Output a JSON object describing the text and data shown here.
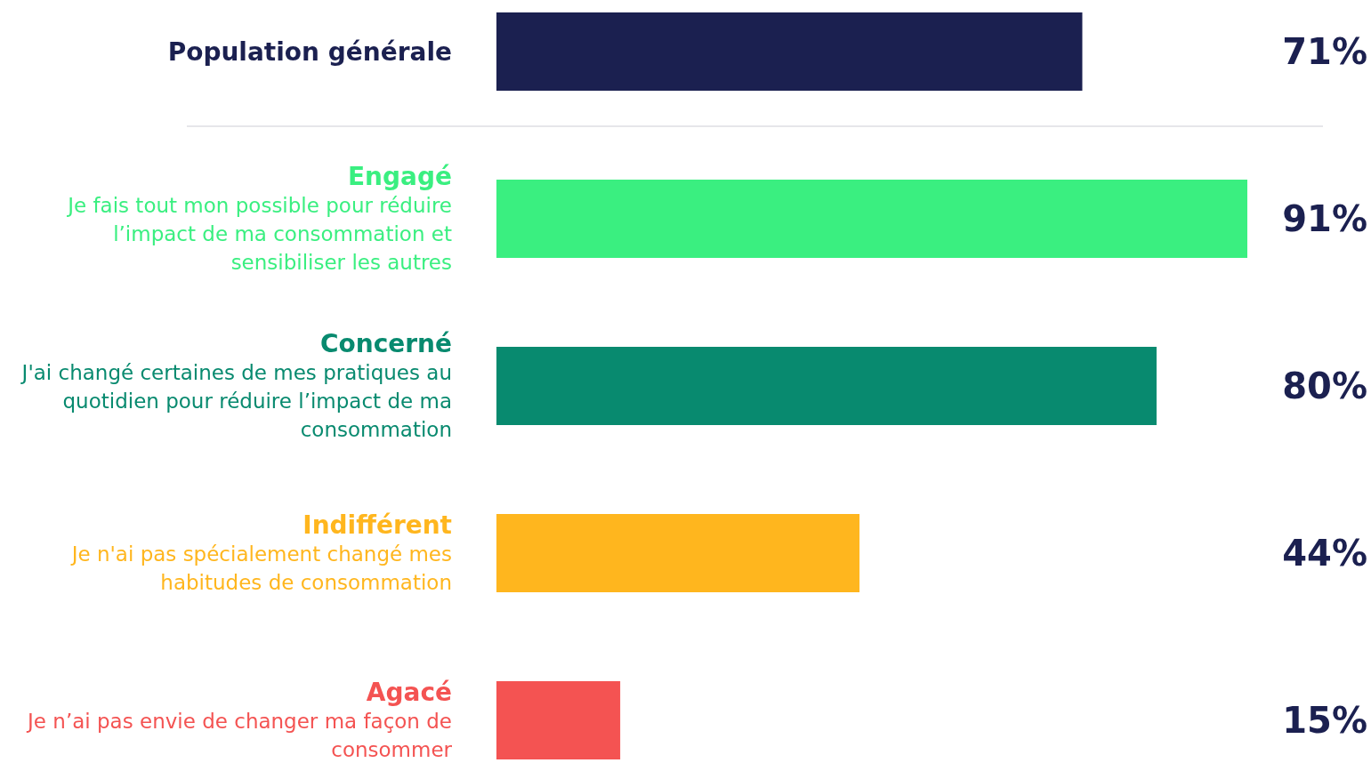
{
  "chart_data": {
    "type": "bar",
    "orientation": "horizontal",
    "categories": [
      "Population générale",
      "Engagé\nJe fais tout mon possible pour réduire\nl’impact de ma consommation et\nsensibiliser les autres",
      "Concerné\nJ'ai changé certaines de mes pratiques au\nquotidien pour réduire l’impact de ma\nconsommation",
      "Indifférent\nJe n'ai pas spécialement changé mes\nhabitudes de consommation",
      "Agacé\nJe n’ai pas envie de changer ma façon de\nconsommer"
    ],
    "values": [
      71,
      91,
      80,
      44,
      15
    ],
    "colors": [
      "#1b2050",
      "#3aef80",
      "#088a6f",
      "#ffb61e",
      "#f45352"
    ],
    "value_labels": [
      "71%",
      "91%",
      "80%",
      "44%",
      "15%"
    ]
  }
}
